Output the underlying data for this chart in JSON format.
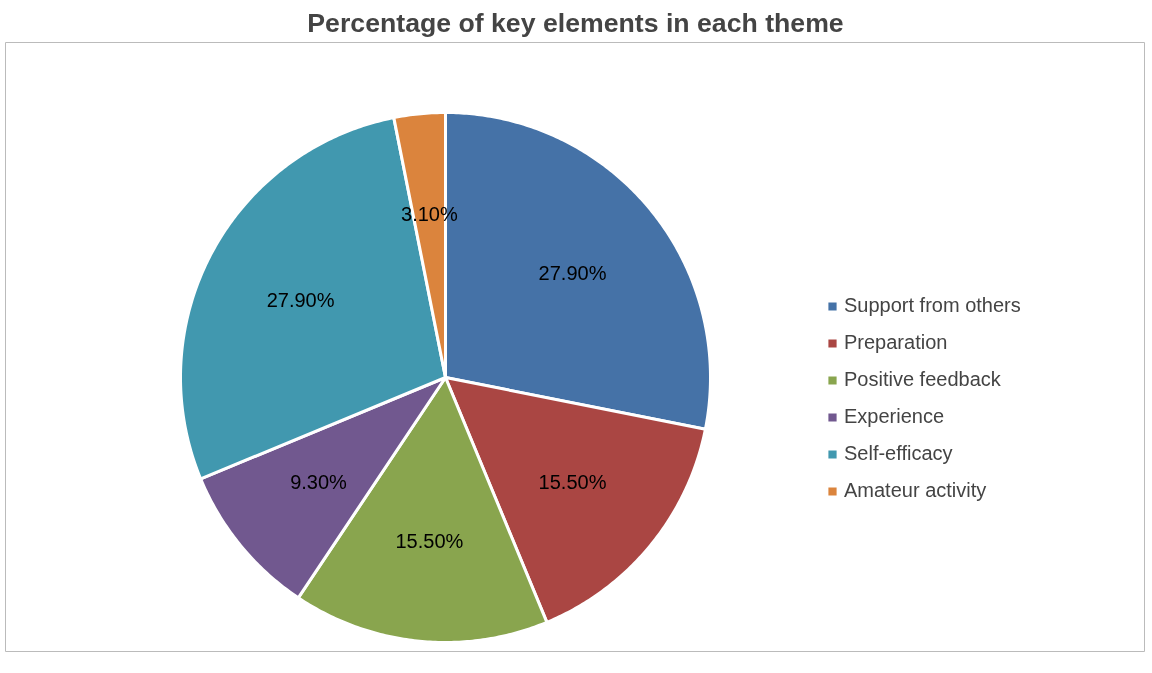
{
  "chart_data": {
    "type": "pie",
    "title": "Percentage of key elements in each theme",
    "categories": [
      "Support from others",
      "Preparation",
      "Positive feedback",
      "Experience",
      "Self-efficacy",
      "Amateur activity"
    ],
    "values": [
      27.9,
      15.5,
      15.5,
      9.3,
      27.9,
      3.1
    ],
    "value_labels": [
      "27.90%",
      "15.50%",
      "15.50%",
      "9.30%",
      "27.90%",
      "3.10%"
    ],
    "colors": [
      "#4572a7",
      "#aa4643",
      "#89a54e",
      "#71588f",
      "#4198af",
      "#db843d"
    ],
    "legend": "right"
  }
}
